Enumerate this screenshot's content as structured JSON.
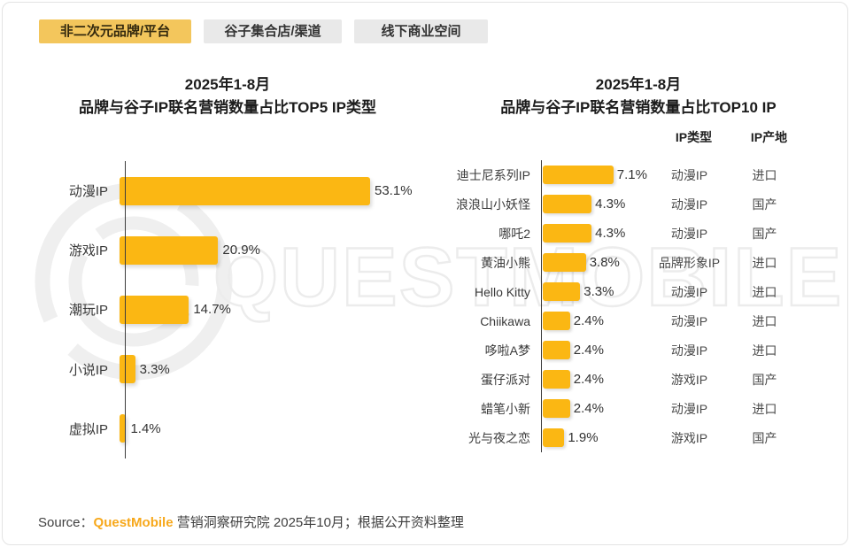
{
  "tabs": {
    "items": [
      {
        "label": "非二次元品牌/平台",
        "active": true
      },
      {
        "label": "谷子集合店/渠道",
        "active": false
      },
      {
        "label": "线下商业空间",
        "active": false
      }
    ]
  },
  "charts": {
    "left": {
      "title_line1": "2025年1-8月",
      "title_line2": "品牌与谷子IP联名营销数量占比TOP5 IP类型",
      "rows": [
        {
          "label": "动漫IP",
          "value": 53.1,
          "pct": "53.1%"
        },
        {
          "label": "游戏IP",
          "value": 20.9,
          "pct": "20.9%"
        },
        {
          "label": "潮玩IP",
          "value": 14.7,
          "pct": "14.7%"
        },
        {
          "label": "小说IP",
          "value": 3.3,
          "pct": "3.3%"
        },
        {
          "label": "虚拟IP",
          "value": 1.4,
          "pct": "1.4%"
        }
      ]
    },
    "right": {
      "title_line1": "2025年1-8月",
      "title_line2": "品牌与谷子IP联名营销数量占比TOP10 IP",
      "col_type_header": "IP类型",
      "col_origin_header": "IP产地",
      "rows": [
        {
          "label": "迪士尼系列IP",
          "value": 7.1,
          "pct": "7.1%",
          "type": "动漫IP",
          "origin": "进口"
        },
        {
          "label": "浪浪山小妖怪",
          "value": 4.3,
          "pct": "4.3%",
          "type": "动漫IP",
          "origin": "国产"
        },
        {
          "label": "哪吒2",
          "value": 4.3,
          "pct": "4.3%",
          "type": "动漫IP",
          "origin": "国产"
        },
        {
          "label": "黄油小熊",
          "value": 3.8,
          "pct": "3.8%",
          "type": "品牌形象IP",
          "origin": "进口"
        },
        {
          "label": "Hello Kitty",
          "value": 3.3,
          "pct": "3.3%",
          "type": "动漫IP",
          "origin": "进口"
        },
        {
          "label": "Chiikawa",
          "value": 2.4,
          "pct": "2.4%",
          "type": "动漫IP",
          "origin": "进口"
        },
        {
          "label": "哆啦A梦",
          "value": 2.4,
          "pct": "2.4%",
          "type": "动漫IP",
          "origin": "进口"
        },
        {
          "label": "蛋仔派对",
          "value": 2.4,
          "pct": "2.4%",
          "type": "游戏IP",
          "origin": "国产"
        },
        {
          "label": "蜡笔小新",
          "value": 2.4,
          "pct": "2.4%",
          "type": "动漫IP",
          "origin": "进口"
        },
        {
          "label": "光与夜之恋",
          "value": 1.9,
          "pct": "1.9%",
          "type": "游戏IP",
          "origin": "国产"
        }
      ]
    }
  },
  "chart_data": [
    {
      "type": "bar",
      "orientation": "horizontal",
      "title": "2025年1-8月 品牌与谷子IP联名营销数量占比TOP5 IP类型",
      "categories": [
        "动漫IP",
        "游戏IP",
        "潮玩IP",
        "小说IP",
        "虚拟IP"
      ],
      "values": [
        53.1,
        20.9,
        14.7,
        3.3,
        1.4
      ],
      "unit": "%",
      "xlabel": "",
      "ylabel": "",
      "grid": false,
      "legend": false,
      "data_labels": [
        "53.1%",
        "20.9%",
        "14.7%",
        "3.3%",
        "1.4%"
      ]
    },
    {
      "type": "bar",
      "orientation": "horizontal",
      "title": "2025年1-8月 品牌与谷子IP联名营销数量占比TOP10 IP",
      "categories": [
        "迪士尼系列IP",
        "浪浪山小妖怪",
        "哪吒2",
        "黄油小熊",
        "Hello Kitty",
        "Chiikawa",
        "哆啦A梦",
        "蛋仔派对",
        "蜡笔小新",
        "光与夜之恋"
      ],
      "values": [
        7.1,
        4.3,
        4.3,
        3.8,
        3.3,
        2.4,
        2.4,
        2.4,
        2.4,
        1.9
      ],
      "unit": "%",
      "data_labels": [
        "7.1%",
        "4.3%",
        "4.3%",
        "3.8%",
        "3.3%",
        "2.4%",
        "2.4%",
        "2.4%",
        "2.4%",
        "1.9%"
      ],
      "extra_columns": {
        "IP类型": [
          "动漫IP",
          "动漫IP",
          "动漫IP",
          "品牌形象IP",
          "动漫IP",
          "动漫IP",
          "动漫IP",
          "游戏IP",
          "动漫IP",
          "游戏IP"
        ],
        "IP产地": [
          "进口",
          "国产",
          "国产",
          "进口",
          "进口",
          "进口",
          "进口",
          "国产",
          "进口",
          "国产"
        ]
      },
      "grid": false,
      "legend": false
    }
  ],
  "source": {
    "prefix": "Source：",
    "brand": "QuestMobile",
    "rest": " 营销洞察研究院 2025年10月；根据公开资料整理"
  },
  "watermark": {
    "text": "QUESTMOBILE"
  },
  "colors": {
    "bar": "#FBB713",
    "tab_active_bg": "#F3C65C",
    "tab_inactive_bg": "#E9E9E9",
    "brand_orange": "#F7A81B",
    "axis": "#3C3C3C",
    "watermark_gray": "#ECECEC"
  }
}
